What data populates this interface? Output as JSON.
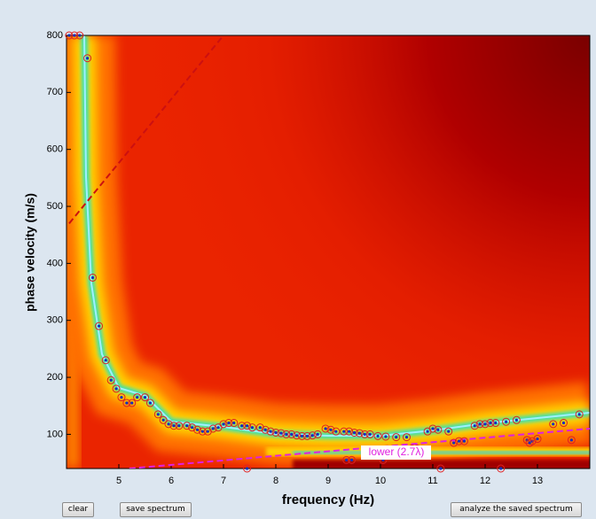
{
  "chart_data": {
    "type": "scatter",
    "xlabel": "frequency (Hz)",
    "ylabel": "phase velocity (m/s)",
    "xlim": [
      4,
      14
    ],
    "ylim": [
      40,
      800
    ],
    "xticks": [
      5,
      6,
      7,
      8,
      9,
      10,
      11,
      12,
      13
    ],
    "yticks": [
      100,
      200,
      300,
      400,
      500,
      600,
      700,
      800
    ],
    "marker_color": "#e02020",
    "dot_color": "#1030c0",
    "x": [
      4.05,
      4.15,
      4.25,
      4.4,
      4.5,
      4.62,
      4.75,
      4.85,
      4.95,
      5.05,
      5.15,
      5.25,
      5.35,
      5.5,
      5.6,
      5.75,
      5.85,
      5.95,
      6.05,
      6.15,
      6.3,
      6.4,
      6.5,
      6.6,
      6.7,
      6.8,
      6.9,
      7.0,
      7.1,
      7.2,
      7.35,
      7.45,
      7.55,
      7.7,
      7.8,
      7.9,
      8.0,
      8.1,
      8.2,
      8.3,
      8.4,
      8.5,
      8.6,
      8.7,
      8.8,
      8.95,
      9.05,
      9.15,
      9.3,
      9.4,
      9.5,
      9.6,
      9.7,
      9.8,
      9.95,
      10.1,
      10.3,
      10.5,
      10.6,
      10.7,
      10.9,
      11.0,
      11.1,
      11.3,
      11.4,
      11.5,
      11.6,
      11.8,
      11.9,
      12.0,
      12.1,
      12.2,
      12.4,
      12.6,
      12.8,
      12.9,
      13.0,
      13.3,
      13.5,
      13.65,
      13.8,
      7.45,
      9.35,
      9.45,
      10.05,
      11.15,
      12.3,
      12.85
    ],
    "values": [
      800,
      800,
      800,
      760,
      375,
      290,
      230,
      195,
      180,
      165,
      155,
      155,
      165,
      165,
      155,
      135,
      125,
      118,
      115,
      115,
      115,
      112,
      108,
      105,
      105,
      110,
      112,
      118,
      120,
      120,
      115,
      115,
      112,
      112,
      108,
      105,
      103,
      102,
      100,
      100,
      98,
      97,
      97,
      98,
      100,
      110,
      108,
      105,
      105,
      105,
      103,
      102,
      100,
      100,
      97,
      96,
      95,
      95,
      75,
      75,
      105,
      110,
      108,
      105,
      85,
      88,
      88,
      115,
      118,
      118,
      120,
      120,
      122,
      125,
      90,
      88,
      92,
      118,
      120,
      90,
      135,
      40,
      55,
      55,
      55,
      40,
      40,
      85
    ],
    "reference_lines": [
      {
        "x": [
          4.05,
          7.0
        ],
        "y": [
          470,
          800
        ],
        "color": "#cc1010"
      },
      {
        "x": [
          5.2,
          14
        ],
        "y": [
          40,
          110
        ],
        "color": "#e020e0",
        "label": "lower (2.7λ)"
      }
    ]
  },
  "buttons": [
    "clear",
    "save spectrum",
    "analyze the saved spectrum"
  ]
}
